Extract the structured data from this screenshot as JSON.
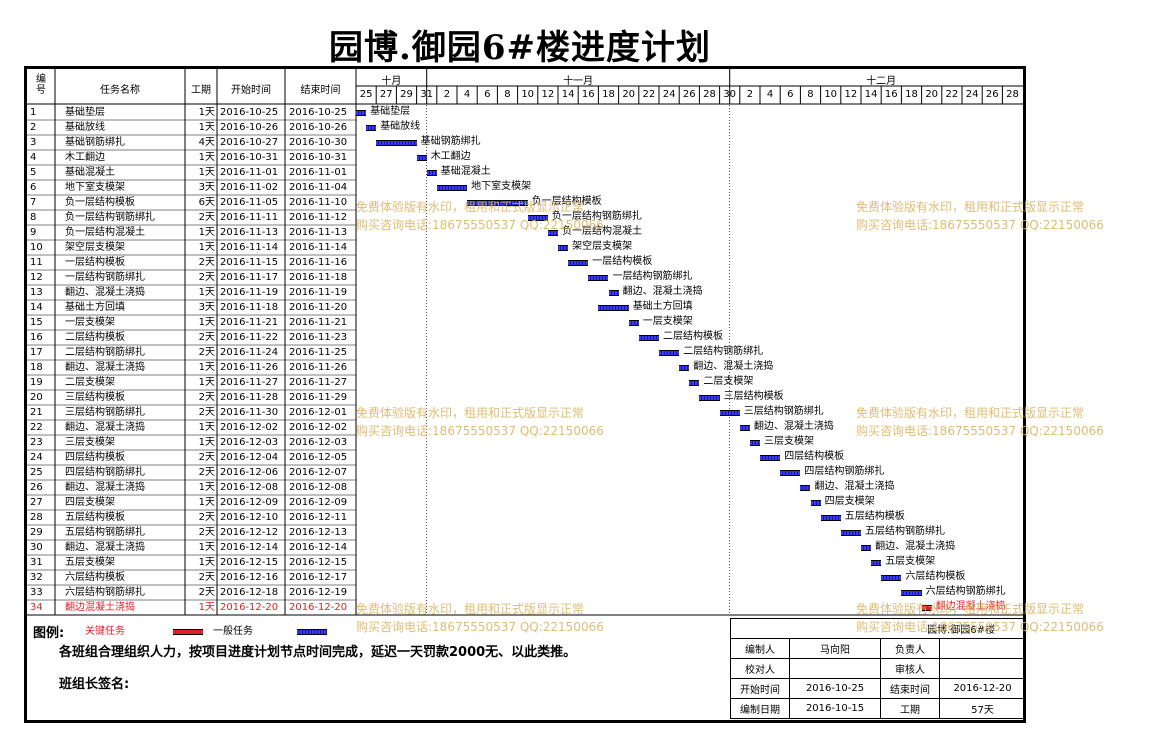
{
  "title": "园博.御园6#楼进度计划",
  "header": {
    "no": "编号",
    "task_name": "任务名称",
    "duration": "工期",
    "start": "开始时间",
    "end": "结束时间"
  },
  "months": [
    "十月",
    "十一月",
    "十二月"
  ],
  "days": [
    "25",
    "27",
    "29",
    "31",
    "2",
    "4",
    "6",
    "8",
    "10",
    "12",
    "14",
    "16",
    "18",
    "20",
    "22",
    "24",
    "26",
    "28",
    "30",
    "2",
    "4",
    "6",
    "8",
    "10",
    "12",
    "14",
    "16",
    "18",
    "20",
    "22",
    "24",
    "26",
    "28"
  ],
  "tasks": [
    {
      "no": "1",
      "name": "基础垫层",
      "dur": "1天",
      "start": "2016-10-25",
      "end": "2016-10-25",
      "s": 0,
      "d": 1,
      "crit": false
    },
    {
      "no": "2",
      "name": "基础放线",
      "dur": "1天",
      "start": "2016-10-26",
      "end": "2016-10-26",
      "s": 1,
      "d": 1,
      "crit": false
    },
    {
      "no": "3",
      "name": "基础钢筋绑扎",
      "dur": "4天",
      "start": "2016-10-27",
      "end": "2016-10-30",
      "s": 2,
      "d": 4,
      "crit": false
    },
    {
      "no": "4",
      "name": "木工翻边",
      "dur": "1天",
      "start": "2016-10-31",
      "end": "2016-10-31",
      "s": 6,
      "d": 1,
      "crit": false
    },
    {
      "no": "5",
      "name": "基础混凝土",
      "dur": "1天",
      "start": "2016-11-01",
      "end": "2016-11-01",
      "s": 7,
      "d": 1,
      "crit": false
    },
    {
      "no": "6",
      "name": "地下室支模架",
      "dur": "3天",
      "start": "2016-11-02",
      "end": "2016-11-04",
      "s": 8,
      "d": 3,
      "crit": false
    },
    {
      "no": "7",
      "name": "负一层结构模板",
      "dur": "6天",
      "start": "2016-11-05",
      "end": "2016-11-10",
      "s": 11,
      "d": 6,
      "crit": false
    },
    {
      "no": "8",
      "name": "负一层结构钢筋绑扎",
      "dur": "2天",
      "start": "2016-11-11",
      "end": "2016-11-12",
      "s": 17,
      "d": 2,
      "crit": false
    },
    {
      "no": "9",
      "name": "负一层结构混凝土",
      "dur": "1天",
      "start": "2016-11-13",
      "end": "2016-11-13",
      "s": 19,
      "d": 1,
      "crit": false
    },
    {
      "no": "10",
      "name": "架空层支模架",
      "dur": "1天",
      "start": "2016-11-14",
      "end": "2016-11-14",
      "s": 20,
      "d": 1,
      "crit": false
    },
    {
      "no": "11",
      "name": "一层结构模板",
      "dur": "2天",
      "start": "2016-11-15",
      "end": "2016-11-16",
      "s": 21,
      "d": 2,
      "crit": false
    },
    {
      "no": "12",
      "name": "一层结构钢筋绑扎",
      "dur": "2天",
      "start": "2016-11-17",
      "end": "2016-11-18",
      "s": 23,
      "d": 2,
      "crit": false
    },
    {
      "no": "13",
      "name": "翻边、混凝土浇捣",
      "dur": "1天",
      "start": "2016-11-19",
      "end": "2016-11-19",
      "s": 25,
      "d": 1,
      "crit": false
    },
    {
      "no": "14",
      "name": "基础土方回填",
      "dur": "3天",
      "start": "2016-11-18",
      "end": "2016-11-20",
      "s": 24,
      "d": 3,
      "crit": false
    },
    {
      "no": "15",
      "name": "一层支模架",
      "dur": "1天",
      "start": "2016-11-21",
      "end": "2016-11-21",
      "s": 27,
      "d": 1,
      "crit": false
    },
    {
      "no": "16",
      "name": "二层结构模板",
      "dur": "2天",
      "start": "2016-11-22",
      "end": "2016-11-23",
      "s": 28,
      "d": 2,
      "crit": false
    },
    {
      "no": "17",
      "name": "二层结构钢筋绑扎",
      "dur": "2天",
      "start": "2016-11-24",
      "end": "2016-11-25",
      "s": 30,
      "d": 2,
      "crit": false
    },
    {
      "no": "18",
      "name": "翻边、混凝土浇捣",
      "dur": "1天",
      "start": "2016-11-26",
      "end": "2016-11-26",
      "s": 32,
      "d": 1,
      "crit": false
    },
    {
      "no": "19",
      "name": "二层支模架",
      "dur": "1天",
      "start": "2016-11-27",
      "end": "2016-11-27",
      "s": 33,
      "d": 1,
      "crit": false
    },
    {
      "no": "20",
      "name": "三层结构模板",
      "dur": "2天",
      "start": "2016-11-28",
      "end": "2016-11-29",
      "s": 34,
      "d": 2,
      "crit": false
    },
    {
      "no": "21",
      "name": "三层结构钢筋绑扎",
      "dur": "2天",
      "start": "2016-11-30",
      "end": "2016-12-01",
      "s": 36,
      "d": 2,
      "crit": false
    },
    {
      "no": "22",
      "name": "翻边、混凝土浇捣",
      "dur": "1天",
      "start": "2016-12-02",
      "end": "2016-12-02",
      "s": 38,
      "d": 1,
      "crit": false
    },
    {
      "no": "23",
      "name": "三层支模架",
      "dur": "1天",
      "start": "2016-12-03",
      "end": "2016-12-03",
      "s": 39,
      "d": 1,
      "crit": false
    },
    {
      "no": "24",
      "name": "四层结构模板",
      "dur": "2天",
      "start": "2016-12-04",
      "end": "2016-12-05",
      "s": 40,
      "d": 2,
      "crit": false
    },
    {
      "no": "25",
      "name": "四层结构钢筋绑扎",
      "dur": "2天",
      "start": "2016-12-06",
      "end": "2016-12-07",
      "s": 42,
      "d": 2,
      "crit": false
    },
    {
      "no": "26",
      "name": "翻边、混凝土浇捣",
      "dur": "1天",
      "start": "2016-12-08",
      "end": "2016-12-08",
      "s": 44,
      "d": 1,
      "crit": false
    },
    {
      "no": "27",
      "name": "四层支模架",
      "dur": "1天",
      "start": "2016-12-09",
      "end": "2016-12-09",
      "s": 45,
      "d": 1,
      "crit": false
    },
    {
      "no": "28",
      "name": "五层结构模板",
      "dur": "2天",
      "start": "2016-12-10",
      "end": "2016-12-11",
      "s": 46,
      "d": 2,
      "crit": false
    },
    {
      "no": "29",
      "name": "五层结构钢筋绑扎",
      "dur": "2天",
      "start": "2016-12-12",
      "end": "2016-12-13",
      "s": 48,
      "d": 2,
      "crit": false
    },
    {
      "no": "30",
      "name": "翻边、混凝土浇捣",
      "dur": "1天",
      "start": "2016-12-14",
      "end": "2016-12-14",
      "s": 50,
      "d": 1,
      "crit": false
    },
    {
      "no": "31",
      "name": "五层支模架",
      "dur": "1天",
      "start": "2016-12-15",
      "end": "2016-12-15",
      "s": 51,
      "d": 1,
      "crit": false
    },
    {
      "no": "32",
      "name": "六层结构模板",
      "dur": "2天",
      "start": "2016-12-16",
      "end": "2016-12-17",
      "s": 52,
      "d": 2,
      "crit": false
    },
    {
      "no": "33",
      "name": "六层结构钢筋绑扎",
      "dur": "2天",
      "start": "2016-12-18",
      "end": "2016-12-19",
      "s": 54,
      "d": 2,
      "crit": false
    },
    {
      "no": "34",
      "name": "翻边混凝土浇捣",
      "dur": "1天",
      "start": "2016-12-20",
      "end": "2016-12-20",
      "s": 56,
      "d": 1,
      "crit": true
    }
  ],
  "legend": {
    "label": "图例:",
    "critical": "关键任务",
    "normal": "一般任务"
  },
  "note": "各班组合理组织人力，按项目进度计划节点时间完成，延迟一天罚款2000无、以此类推。",
  "sign": "班组长签名:",
  "info": {
    "project": "园博.御园6#楼",
    "prepared_by_label": "编制人",
    "prepared_by": "马向阳",
    "responsible_label": "负责人",
    "responsible": "",
    "checked_label": "校对人",
    "checked": "",
    "reviewer_label": "审核人",
    "reviewer": "",
    "start_label": "开始时间",
    "start": "2016-10-25",
    "end_label": "结束时间",
    "end": "2016-12-20",
    "date_label": "编制日期",
    "date": "2016-10-15",
    "duration_label": "工期",
    "duration": "57天"
  },
  "watermark": {
    "line1": "免费体验版有水印，租用和正式版显示正常",
    "line2": "购买咨询电话:18675550537 QQ:22150066"
  },
  "colors": {
    "critical": "#e0202a",
    "normal": "#2b2bd8",
    "watermark": "#d9b25a"
  }
}
